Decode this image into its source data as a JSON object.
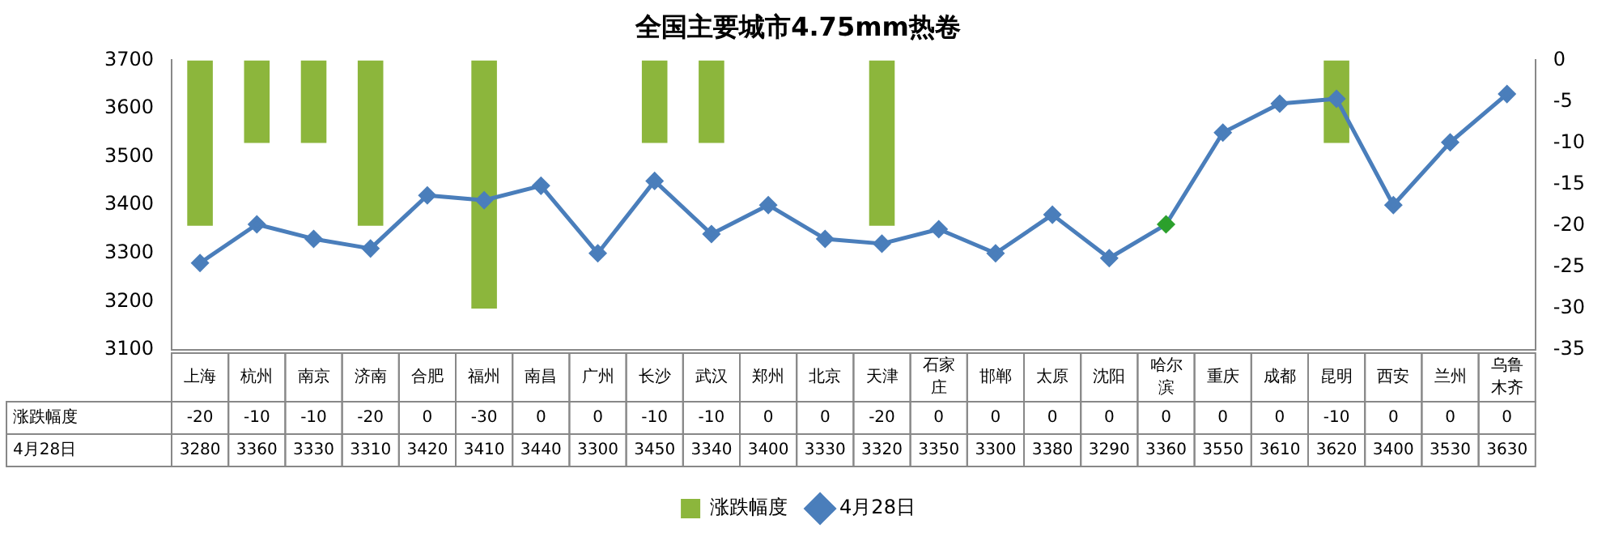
{
  "chart_data": {
    "type": "bar",
    "title": "全国主要城市4.75mm热卷",
    "categories": [
      "上海",
      "杭州",
      "南京",
      "济南",
      "合肥",
      "福州",
      "南昌",
      "广州",
      "长沙",
      "武汉",
      "郑州",
      "北京",
      "天津",
      "石家庄",
      "邯郸",
      "太原",
      "沈阳",
      "哈尔滨",
      "重庆",
      "成都",
      "昆明",
      "西安",
      "兰州",
      "乌鲁木齐"
    ],
    "series": [
      {
        "name": "涨跌幅度",
        "axis": "y2",
        "color": "#8cb63c",
        "values": [
          -20,
          -10,
          -10,
          -20,
          0,
          -30,
          0,
          0,
          -10,
          -10,
          0,
          0,
          -20,
          0,
          0,
          0,
          0,
          0,
          0,
          0,
          -10,
          0,
          0,
          0
        ]
      },
      {
        "name": "4月28日",
        "type": "line",
        "color": "#4a7ebb",
        "colors": [
          "#4a7ebb",
          "#4a7ebb",
          "#4a7ebb",
          "#4a7ebb",
          "#4a7ebb",
          "#4a7ebb",
          "#4a7ebb",
          "#4a7ebb",
          "#4a7ebb",
          "#4a7ebb",
          "#4a7ebb",
          "#4a7ebb",
          "#4a7ebb",
          "#4a7ebb",
          "#4a7ebb",
          "#4a7ebb",
          "#4a7ebb",
          "#2ca02c",
          "#4a7ebb",
          "#4a7ebb",
          "#4a7ebb",
          "#4a7ebb",
          "#4a7ebb",
          "#4a7ebb"
        ],
        "values": [
          3280,
          3360,
          3330,
          3310,
          3420,
          3410,
          3440,
          3300,
          3450,
          3340,
          3400,
          3330,
          3320,
          3350,
          3300,
          3380,
          3290,
          3360,
          3550,
          3610,
          3620,
          3400,
          3530,
          3630
        ]
      }
    ],
    "ylim": [
      3100,
      3700
    ],
    "yticks": [
      3100,
      3200,
      3300,
      3400,
      3500,
      3600,
      3700
    ],
    "y2lim": [
      -35,
      0
    ],
    "y2ticks": [
      -35,
      -30,
      -25,
      -20,
      -15,
      -10,
      -5,
      0
    ],
    "data_labels": true,
    "grid": false,
    "legend": "bottom",
    "marker": "diamond",
    "line_style": "solid"
  }
}
